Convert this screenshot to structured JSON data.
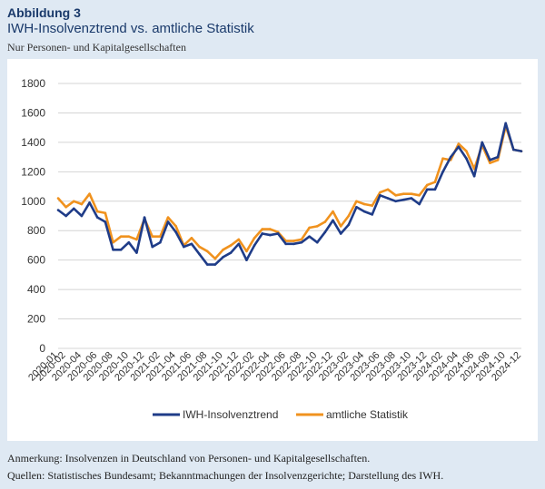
{
  "figure": {
    "kicker": "Abbildung 3",
    "title": "IWH-Insolvenztrend vs. amtliche Statistik",
    "subtitle": "Nur Personen- und Kapitalgesellschaften"
  },
  "notes": {
    "line1": "Anmerkung: Insolvenzen in Deutschland von Personen- und Kapitalgesellschaften.",
    "line2": "Quellen: Statistisches Bundesamt; Bekanntmachungen der Insolvenzgerichte; Darstellung des IWH."
  },
  "colors": {
    "iwh": "#1f3c88",
    "amtlich": "#f0921e",
    "grid": "#d4d4d4"
  },
  "chart_data": {
    "type": "line",
    "ylim": [
      0,
      1800
    ],
    "yticks": [
      0,
      200,
      400,
      600,
      800,
      1000,
      1200,
      1400,
      1600,
      1800
    ],
    "grid": "horizontal",
    "legend_position": "bottom",
    "x": [
      "2020-01",
      "2020-02",
      "2020-03",
      "2020-04",
      "2020-05",
      "2020-06",
      "2020-07",
      "2020-08",
      "2020-09",
      "2020-10",
      "2020-11",
      "2020-12",
      "2021-01",
      "2021-02",
      "2021-03",
      "2021-04",
      "2021-05",
      "2021-06",
      "2021-07",
      "2021-08",
      "2021-09",
      "2021-10",
      "2021-11",
      "2021-12",
      "2022-01",
      "2022-02",
      "2022-03",
      "2022-04",
      "2022-05",
      "2022-06",
      "2022-07",
      "2022-08",
      "2022-09",
      "2022-10",
      "2022-11",
      "2022-12",
      "2023-01",
      "2023-02",
      "2023-03",
      "2023-04",
      "2023-05",
      "2023-06",
      "2023-07",
      "2023-08",
      "2023-09",
      "2023-10",
      "2023-11",
      "2023-12",
      "2024-01",
      "2024-02",
      "2024-03",
      "2024-04",
      "2024-05",
      "2024-06",
      "2024-07",
      "2024-08",
      "2024-09",
      "2024-10",
      "2024-11",
      "2024-12"
    ],
    "xtick_labels": [
      "2020-01",
      "2020-02",
      "2020-04",
      "2020-06",
      "2020-08",
      "2020-10",
      "2020-12",
      "2021-02",
      "2021-04",
      "2021-06",
      "2021-08",
      "2021-10",
      "2021-12",
      "2022-02",
      "2022-04",
      "2022-06",
      "2022-08",
      "2022-10",
      "2022-12",
      "2023-02",
      "2023-04",
      "2023-06",
      "2023-08",
      "2023-10",
      "2023-12",
      "2024-02",
      "2024-04",
      "2024-06",
      "2024-08",
      "2024-10",
      "2024-12"
    ],
    "series": [
      {
        "name": "IWH-Insolvenztrend",
        "color": "#1f3c88",
        "values": [
          940,
          900,
          950,
          900,
          990,
          890,
          860,
          670,
          670,
          720,
          650,
          890,
          690,
          720,
          860,
          790,
          690,
          710,
          640,
          570,
          570,
          620,
          650,
          710,
          600,
          700,
          780,
          770,
          780,
          710,
          710,
          720,
          760,
          720,
          790,
          870,
          780,
          840,
          960,
          930,
          910,
          1040,
          1020,
          1000,
          1010,
          1020,
          980,
          1080,
          1080,
          1200,
          1300,
          1370,
          1290,
          1170,
          1400,
          1280,
          1300,
          1530,
          1350,
          1340
        ]
      },
      {
        "name": "amtliche Statistik",
        "color": "#f0921e",
        "values": [
          1020,
          960,
          1000,
          980,
          1050,
          930,
          920,
          720,
          760,
          760,
          740,
          880,
          760,
          760,
          890,
          830,
          700,
          750,
          690,
          660,
          610,
          670,
          700,
          740,
          660,
          750,
          810,
          810,
          790,
          730,
          730,
          740,
          820,
          830,
          860,
          930,
          830,
          900,
          1000,
          980,
          970,
          1060,
          1080,
          1040,
          1050,
          1050,
          1040,
          1110,
          1130,
          1290,
          1280,
          1390,
          1340,
          1220,
          1380,
          1260,
          1280,
          1510,
          1350,
          1340
        ]
      }
    ]
  }
}
